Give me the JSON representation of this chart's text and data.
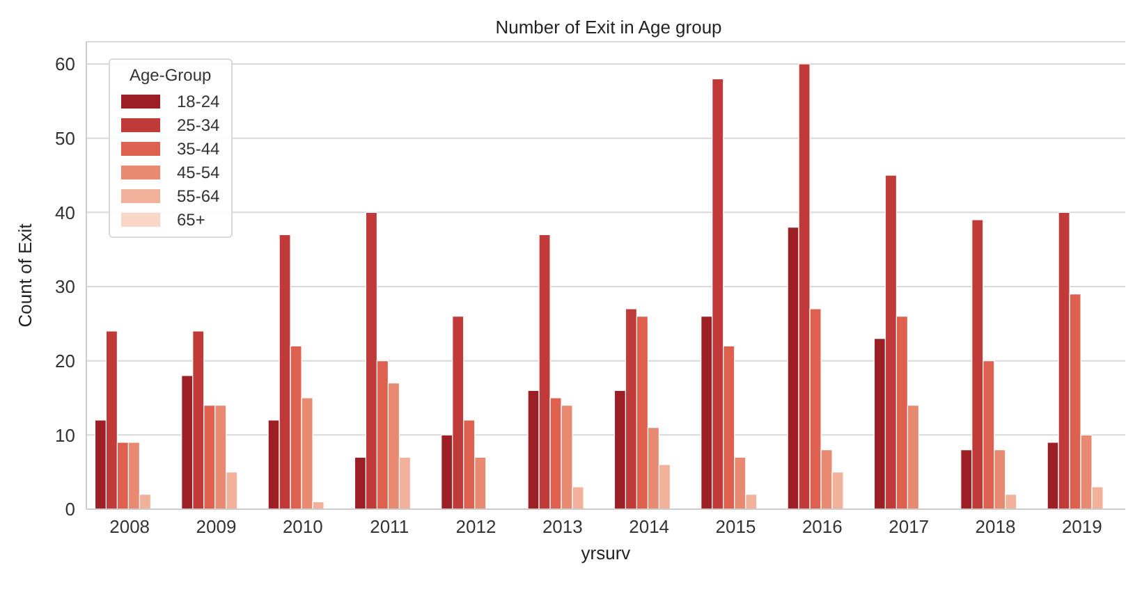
{
  "chart_data": {
    "type": "bar",
    "title": "Number of Exit in Age group",
    "xlabel": "yrsurv",
    "ylabel": "Count of Exit",
    "legend_title": "Age-Group",
    "categories": [
      "2008",
      "2009",
      "2010",
      "2011",
      "2012",
      "2013",
      "2014",
      "2015",
      "2016",
      "2017",
      "2018",
      "2019"
    ],
    "series": [
      {
        "name": "18-24",
        "color": "#9c1f25",
        "values": [
          12,
          18,
          12,
          7,
          10,
          16,
          16,
          26,
          38,
          23,
          8,
          9
        ]
      },
      {
        "name": "25-34",
        "color": "#c13a3a",
        "values": [
          24,
          24,
          37,
          40,
          26,
          37,
          27,
          58,
          60,
          45,
          39,
          40
        ]
      },
      {
        "name": "35-44",
        "color": "#de604f",
        "values": [
          9,
          14,
          22,
          20,
          12,
          15,
          26,
          22,
          27,
          26,
          20,
          29
        ]
      },
      {
        "name": "45-54",
        "color": "#e88a72",
        "values": [
          9,
          14,
          15,
          17,
          7,
          14,
          11,
          7,
          8,
          14,
          8,
          10
        ]
      },
      {
        "name": "55-64",
        "color": "#f2b19b",
        "values": [
          2,
          5,
          1,
          7,
          null,
          3,
          6,
          2,
          5,
          null,
          2,
          3
        ]
      },
      {
        "name": "65+",
        "color": "#f9d6c8",
        "values": [
          null,
          null,
          null,
          null,
          null,
          null,
          null,
          null,
          null,
          null,
          null,
          null
        ]
      }
    ],
    "ylim": [
      0,
      63
    ],
    "yticks": [
      0,
      10,
      20,
      30,
      40,
      50,
      60
    ],
    "grid": "y",
    "legend": "top left"
  }
}
